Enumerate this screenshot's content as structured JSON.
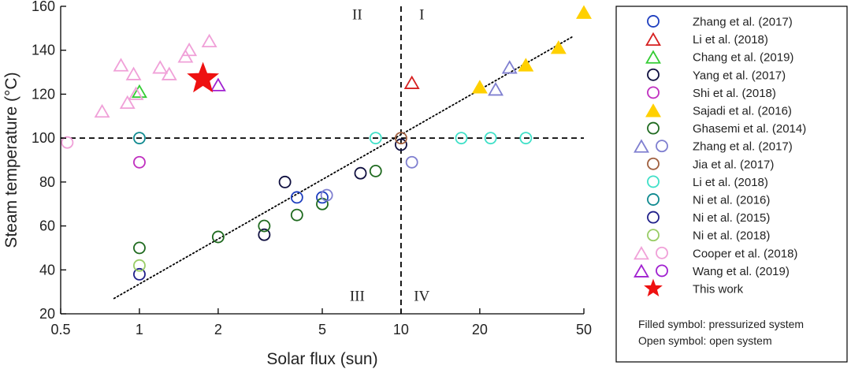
{
  "chart_data": {
    "type": "scatter",
    "title": "",
    "xlabel": "Solar flux (sun)",
    "ylabel": "Steam temperature (°C)",
    "xscale": "log",
    "xlim": [
      0.5,
      50
    ],
    "ylim": [
      20,
      160
    ],
    "xticks": [
      0.5,
      1,
      2,
      5,
      10,
      20,
      50
    ],
    "xtick_labels": [
      "0.5",
      "1",
      "2",
      "5",
      "10",
      "20",
      "50"
    ],
    "yticks": [
      20,
      40,
      60,
      80,
      100,
      120,
      140,
      160
    ],
    "ytick_labels": [
      "20",
      "40",
      "60",
      "80",
      "100",
      "120",
      "140",
      "160"
    ],
    "grid": false,
    "legend_position": "right-outside",
    "quadrants": [
      {
        "label": "I",
        "x": 12,
        "y": 154
      },
      {
        "label": "II",
        "x": 6.8,
        "y": 154
      },
      {
        "label": "III",
        "x": 6.8,
        "y": 26
      },
      {
        "label": "IV",
        "x": 12,
        "y": 26
      }
    ],
    "reference_lines": {
      "vertical_x": 10,
      "horizontal_y": 100
    },
    "fit_line": {
      "x": [
        0.8,
        45
      ],
      "y": [
        27,
        146
      ]
    },
    "series": [
      {
        "name": "Zhang et al. (2017)",
        "marker": "circle",
        "filled": false,
        "color": "#1f3fbf",
        "points": [
          [
            4,
            73
          ],
          [
            5,
            73
          ]
        ]
      },
      {
        "name": "Li et al. (2018)",
        "marker": "triangle",
        "filled": false,
        "color": "#d62020",
        "points": [
          [
            11,
            125
          ]
        ]
      },
      {
        "name": "Chang et al. (2019)",
        "marker": "triangle",
        "filled": false,
        "color": "#33cc33",
        "points": [
          [
            1,
            121
          ]
        ]
      },
      {
        "name": "Yang et al. (2017)",
        "marker": "circle",
        "filled": false,
        "color": "#101040",
        "points": [
          [
            3.6,
            80
          ],
          [
            3,
            56
          ],
          [
            7,
            84
          ],
          [
            10,
            97
          ]
        ]
      },
      {
        "name": "Shi et al. (2018)",
        "marker": "circle",
        "filled": false,
        "color": "#c030c0",
        "points": [
          [
            1,
            89
          ]
        ]
      },
      {
        "name": "Sajadi et al. (2016)",
        "marker": "triangle",
        "filled": true,
        "color": "#ffd000",
        "points": [
          [
            20,
            123
          ],
          [
            30,
            133
          ],
          [
            40,
            141
          ],
          [
            50,
            157
          ]
        ]
      },
      {
        "name": "Ghasemi et al. (2014)",
        "marker": "circle",
        "filled": false,
        "color": "#1f6a1f",
        "points": [
          [
            1,
            50
          ],
          [
            2,
            55
          ],
          [
            3,
            60
          ],
          [
            4,
            65
          ],
          [
            5,
            70
          ],
          [
            8,
            85
          ]
        ]
      },
      {
        "name": "Zhang et al. (2017)",
        "marker": "triangle+circle",
        "filled": false,
        "color": "#7f7fd0",
        "points": [
          [
            26,
            132
          ],
          [
            23,
            122
          ]
        ],
        "circle_points": [
          [
            11,
            89
          ],
          [
            5.2,
            74
          ]
        ]
      },
      {
        "name": "Jia et al. (2017)",
        "marker": "circle",
        "filled": false,
        "color": "#a06040",
        "points": [
          [
            10,
            100
          ]
        ]
      },
      {
        "name": "Li et al. (2018)",
        "marker": "circle",
        "filled": false,
        "color": "#40e0c8",
        "points": [
          [
            8,
            100
          ],
          [
            17,
            100
          ],
          [
            22,
            100
          ],
          [
            30,
            100
          ]
        ]
      },
      {
        "name": "Ni et al. (2016)",
        "marker": "circle",
        "filled": false,
        "color": "#108a90",
        "points": [
          [
            1,
            100
          ]
        ]
      },
      {
        "name": "Ni et al. (2015)",
        "marker": "circle",
        "filled": false,
        "color": "#20208a",
        "points": [
          [
            1,
            38
          ]
        ]
      },
      {
        "name": "Ni et al. (2018)",
        "marker": "circle",
        "filled": false,
        "color": "#99cc66",
        "points": [
          [
            1,
            42
          ]
        ]
      },
      {
        "name": "Cooper et al. (2018)",
        "marker": "triangle+circle",
        "filled": false,
        "color": "#f0a0d8",
        "points": [
          [
            0.72,
            112
          ],
          [
            0.85,
            133
          ],
          [
            0.9,
            116
          ],
          [
            0.95,
            129
          ],
          [
            0.97,
            120
          ],
          [
            1.2,
            132
          ],
          [
            1.3,
            129
          ],
          [
            1.5,
            137
          ],
          [
            1.55,
            140
          ],
          [
            1.85,
            144
          ]
        ],
        "circle_points": [
          [
            0.53,
            98
          ]
        ]
      },
      {
        "name": "Wang et al. (2019)",
        "marker": "triangle+circle",
        "filled": false,
        "color": "#a020d0",
        "points": [
          [
            2,
            124
          ]
        ]
      },
      {
        "name": "This work",
        "marker": "star",
        "filled": true,
        "color": "#ee1111",
        "points": [
          [
            1.75,
            127
          ]
        ]
      }
    ],
    "legend_notes": [
      "Filled symbol: pressurized system",
      "Open symbol: open system"
    ]
  }
}
